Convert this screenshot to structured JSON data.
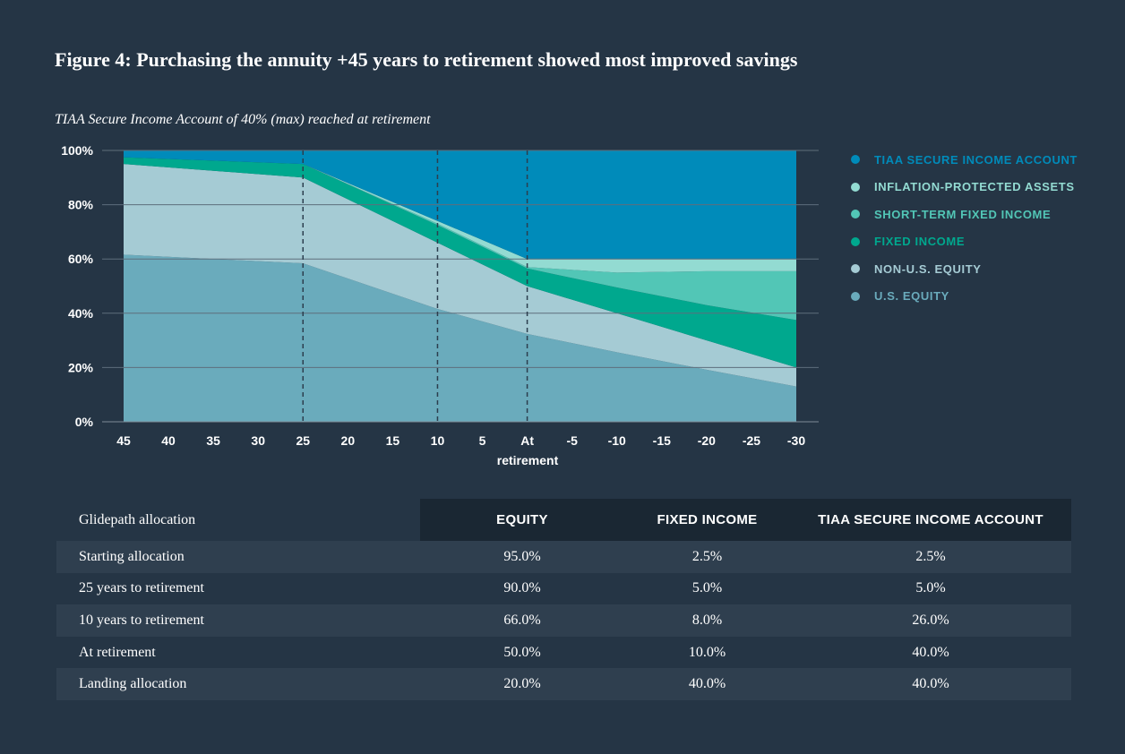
{
  "title": "Figure 4: Purchasing the annuity +45 years to retirement showed most improved savings",
  "chart_data": {
    "type": "area",
    "subtitle": "TIAA Secure Income Account of 40% (max) reached at retirement",
    "xlabel": "retirement",
    "ylabel": "",
    "ylim": [
      0,
      100
    ],
    "x": [
      45,
      25,
      10,
      0,
      -10,
      -20,
      -30
    ],
    "x_ticks": [
      "45",
      "40",
      "35",
      "30",
      "25",
      "20",
      "15",
      "10",
      "5",
      "At",
      "-5",
      "-10",
      "-15",
      "-20",
      "-25",
      "-30"
    ],
    "x_tick_values": [
      45,
      40,
      35,
      30,
      25,
      20,
      15,
      10,
      5,
      0,
      -5,
      -10,
      -15,
      -20,
      -25,
      -30
    ],
    "y_ticks": [
      "0%",
      "20%",
      "40%",
      "60%",
      "80%",
      "100%"
    ],
    "y_tick_values": [
      0,
      20,
      40,
      60,
      80,
      100
    ],
    "vlines": [
      25,
      10,
      0
    ],
    "gridlines": true,
    "legend_position": "right",
    "series": [
      {
        "name": "U.S. Equity",
        "color": "#6aabbc",
        "values": [
          61.6,
          58.4,
          41.6,
          32.4,
          25.6,
          19.2,
          13.0
        ]
      },
      {
        "name": "Non-U.S. Equity",
        "color": "#a5cbd4",
        "values": [
          33.4,
          31.6,
          24.4,
          17.6,
          14.4,
          10.8,
          7.0
        ]
      },
      {
        "name": "Fixed Income",
        "color": "#00a88e",
        "values": [
          2.5,
          5.0,
          6.5,
          6.5,
          9.5,
          13.0,
          17.5
        ]
      },
      {
        "name": "Short-Term Fixed Income",
        "color": "#52c6b6",
        "values": [
          0,
          0,
          0.5,
          0.5,
          5.5,
          12.5,
          18.0
        ]
      },
      {
        "name": "Inflation-Protected Assets",
        "color": "#93dbd2",
        "values": [
          0,
          0,
          1.0,
          3.0,
          5.0,
          4.5,
          4.5
        ]
      },
      {
        "name": "TIAA Secure Income Account",
        "color": "#008bba",
        "values": [
          2.5,
          5.0,
          26.0,
          40.0,
          40.0,
          40.0,
          40.0
        ]
      }
    ]
  },
  "legend": [
    {
      "label": "TIAA Secure Income Account",
      "color": "#008bba"
    },
    {
      "label": "Inflation-Protected Assets",
      "color": "#93dbd2"
    },
    {
      "label": "Short-Term Fixed Income",
      "color": "#52c6b6"
    },
    {
      "label": "Fixed Income",
      "color": "#00a88e"
    },
    {
      "label": "Non-U.S. Equity",
      "color": "#a5cbd4"
    },
    {
      "label": "U.S. Equity",
      "color": "#6aabbc"
    }
  ],
  "table": {
    "header": {
      "label": "Glidepath allocation",
      "equity": "Equity",
      "fixed_income": "Fixed Income",
      "secure_income": "TIAA Secure Income Account"
    },
    "rows": [
      {
        "label": "Starting allocation",
        "equity": "95.0%",
        "fixed_income": "2.5%",
        "secure_income": "2.5%"
      },
      {
        "label": "25 years to retirement",
        "equity": "90.0%",
        "fixed_income": "5.0%",
        "secure_income": "5.0%"
      },
      {
        "label": "10 years to retirement",
        "equity": "66.0%",
        "fixed_income": "8.0%",
        "secure_income": "26.0%"
      },
      {
        "label": "At retirement",
        "equity": "50.0%",
        "fixed_income": "10.0%",
        "secure_income": "40.0%"
      },
      {
        "label": "Landing allocation",
        "equity": "20.0%",
        "fixed_income": "40.0%",
        "secure_income": "40.0%"
      }
    ]
  }
}
